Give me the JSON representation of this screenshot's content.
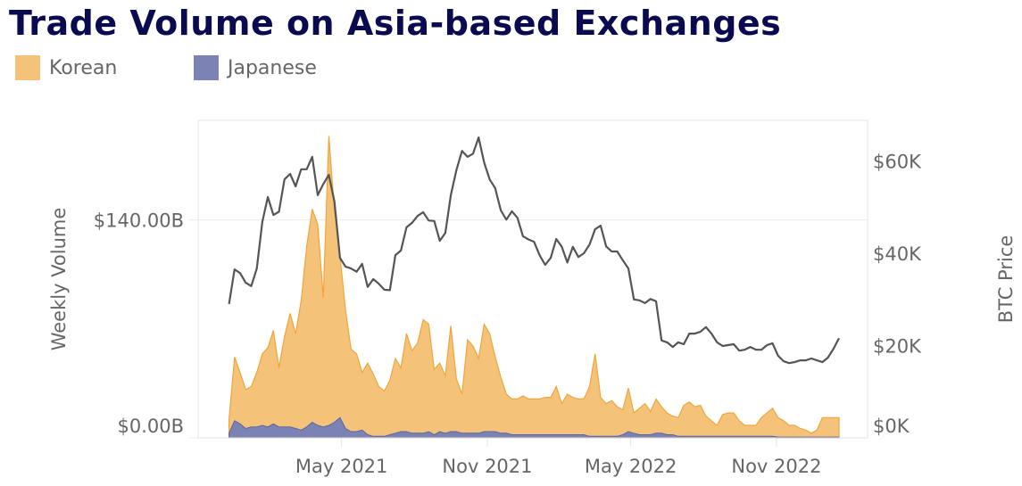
{
  "chart_data": {
    "type": "area",
    "title": "Trade Volume on Asia-based Exchanges",
    "ylabel": "Weekly Volume",
    "y2label": "BTC Price",
    "ylim": [
      0,
      204
    ],
    "y2lim": [
      0,
      68.8
    ],
    "xlim": [
      "2020-11-01",
      "2023-02-24"
    ],
    "yticks": [
      {
        "value": 0,
        "label": "$0.00B"
      },
      {
        "value": 140,
        "label": "$140.00B"
      }
    ],
    "y2ticks": [
      {
        "value": 0,
        "label": "$0K"
      },
      {
        "value": 20,
        "label": "$20K"
      },
      {
        "value": 40,
        "label": "$40K"
      },
      {
        "value": 60,
        "label": "$60K"
      }
    ],
    "xticks": [
      {
        "value": "2021-05-01",
        "label": "May 2021"
      },
      {
        "value": "2021-11-01",
        "label": "Nov 2021"
      },
      {
        "value": "2022-05-01",
        "label": "May 2022"
      },
      {
        "value": "2022-11-01",
        "label": "Nov 2022"
      }
    ],
    "grid": true,
    "legend_position": "top-left",
    "stacked": true,
    "x": [
      "2020-12-10",
      "2020-12-17",
      "2020-12-24",
      "2020-12-31",
      "2021-01-07",
      "2021-01-14",
      "2021-01-21",
      "2021-01-28",
      "2021-02-04",
      "2021-02-11",
      "2021-02-18",
      "2021-02-25",
      "2021-03-04",
      "2021-03-11",
      "2021-03-18",
      "2021-03-25",
      "2021-04-01",
      "2021-04-08",
      "2021-04-15",
      "2021-04-22",
      "2021-04-29",
      "2021-05-06",
      "2021-05-13",
      "2021-05-20",
      "2021-05-27",
      "2021-06-03",
      "2021-06-10",
      "2021-06-17",
      "2021-06-24",
      "2021-07-01",
      "2021-07-08",
      "2021-07-15",
      "2021-07-22",
      "2021-07-29",
      "2021-08-05",
      "2021-08-12",
      "2021-08-19",
      "2021-08-26",
      "2021-09-02",
      "2021-09-09",
      "2021-09-16",
      "2021-09-23",
      "2021-09-30",
      "2021-10-07",
      "2021-10-14",
      "2021-10-21",
      "2021-10-28",
      "2021-11-04",
      "2021-11-11",
      "2021-11-18",
      "2021-11-25",
      "2021-12-02",
      "2021-12-09",
      "2021-12-16",
      "2021-12-23",
      "2021-12-30",
      "2022-01-06",
      "2022-01-13",
      "2022-01-20",
      "2022-01-27",
      "2022-02-03",
      "2022-02-10",
      "2022-02-17",
      "2022-02-24",
      "2022-03-03",
      "2022-03-10",
      "2022-03-17",
      "2022-03-24",
      "2022-03-31",
      "2022-04-07",
      "2022-04-14",
      "2022-04-21",
      "2022-04-28",
      "2022-05-05",
      "2022-05-12",
      "2022-05-19",
      "2022-05-26",
      "2022-06-02",
      "2022-06-09",
      "2022-06-16",
      "2022-06-23",
      "2022-06-30",
      "2022-07-07",
      "2022-07-14",
      "2022-07-21",
      "2022-07-28",
      "2022-08-04",
      "2022-08-11",
      "2022-08-18",
      "2022-08-25",
      "2022-09-01",
      "2022-09-08",
      "2022-09-15",
      "2022-09-22",
      "2022-09-29",
      "2022-10-06",
      "2022-10-13",
      "2022-10-20",
      "2022-10-27",
      "2022-11-03",
      "2022-11-10",
      "2022-11-17",
      "2022-11-24",
      "2022-12-01",
      "2022-12-08",
      "2022-12-15",
      "2022-12-22",
      "2022-12-29",
      "2023-01-05",
      "2023-01-12",
      "2023-01-19"
    ],
    "series": [
      {
        "name": "Korean",
        "type": "area",
        "axis": "left",
        "unit": "$B",
        "color": "#f5c27a",
        "stroke": "#f0a53c",
        "values": [
          9,
          41,
          33,
          25,
          26,
          35,
          46,
          51,
          60,
          38,
          58,
          73,
          61,
          83,
          116,
          137,
          129,
          83,
          186,
          136,
          104,
          76,
          53,
          50,
          37,
          46,
          40,
          32,
          29,
          35,
          48,
          41,
          63,
          53,
          58,
          73,
          69,
          42,
          44,
          37,
          68,
          34,
          25,
          60,
          56,
          48,
          69,
          63,
          48,
          36,
          25,
          23,
          23,
          25,
          23,
          23,
          23,
          24,
          24,
          31,
          20,
          26,
          24,
          23,
          23,
          32,
          53,
          25,
          21,
          23,
          19,
          16,
          28,
          13,
          17,
          20,
          15,
          22,
          17,
          14,
          12,
          12,
          20,
          22,
          19,
          20,
          13,
          10,
          7,
          14,
          15,
          15,
          10,
          7,
          7,
          7,
          12,
          15,
          18,
          12.5,
          10.5,
          7.5,
          7.5,
          5.5,
          4.5,
          2.5,
          4.5,
          12.5,
          12.5,
          12.5,
          12.5
        ]
      },
      {
        "name": "Japanese",
        "type": "area",
        "axis": "left",
        "unit": "$B",
        "color": "#7b83b4",
        "stroke": "#5c64a0",
        "values": [
          3,
          11,
          9,
          6,
          7,
          7,
          8,
          7,
          9,
          7,
          7,
          7,
          6,
          5,
          7,
          10,
          8,
          7,
          8,
          10,
          13,
          6,
          4,
          4,
          5,
          2,
          1,
          1,
          1,
          2,
          3,
          4,
          4,
          3,
          3,
          3,
          4,
          2,
          4,
          3,
          4,
          4,
          3,
          3,
          3,
          3,
          4,
          4,
          4,
          3,
          3,
          2,
          2,
          2,
          2,
          2,
          2,
          2,
          2,
          2,
          2,
          2,
          2,
          2,
          2,
          1,
          1,
          1,
          1,
          1,
          1,
          2,
          4,
          3,
          2,
          2,
          2,
          3,
          3,
          2,
          2,
          1,
          1,
          1,
          1,
          1,
          1,
          1,
          1,
          1,
          1,
          1,
          1,
          1,
          1,
          1,
          1,
          1,
          1,
          0.5,
          0.5,
          0.5,
          0.5,
          0.5,
          0.5,
          0.5,
          0.5,
          0.5,
          0.5,
          0.5,
          0.5
        ]
      },
      {
        "name": "BTC Price",
        "type": "line",
        "axis": "right",
        "unit": "$K",
        "color": "#555555",
        "values": [
          29,
          36.5,
          35.7,
          33.6,
          32.9,
          36.7,
          46.8,
          52.2,
          48.3,
          49,
          56,
          57.2,
          54.5,
          58.2,
          58.2,
          60.9,
          52.6,
          55,
          57,
          51.2,
          39,
          37.1,
          36.7,
          36,
          37.7,
          32.7,
          34.4,
          33.4,
          32.1,
          32,
          39.6,
          40.6,
          45.6,
          46.6,
          48.1,
          48.9,
          47.1,
          47,
          42.7,
          44.4,
          52.6,
          58,
          62.2,
          60.9,
          61.6,
          65.1,
          59.7,
          56,
          54.1,
          49.3,
          47.3,
          49.1,
          47.7,
          43.7,
          43,
          42.5,
          39.6,
          37.5,
          39,
          43.1,
          41.4,
          38,
          41.4,
          39.2,
          40,
          41.9,
          45.2,
          46,
          41.5,
          40.4,
          40.4,
          38.5,
          36.7,
          30,
          29.8,
          29.2,
          30.1,
          29.6,
          21.1,
          20.7,
          19.7,
          20.7,
          20.3,
          22.6,
          22.6,
          23,
          24,
          22.6,
          20.7,
          19.9,
          20.1,
          20.3,
          18.9,
          19.1,
          19.7,
          19.1,
          19.1,
          20.1,
          20.5,
          17.8,
          16.6,
          16.2,
          16.4,
          16.8,
          16.8,
          17.2,
          16.8,
          16.4,
          17.4,
          19.3,
          21.6
        ]
      }
    ]
  }
}
